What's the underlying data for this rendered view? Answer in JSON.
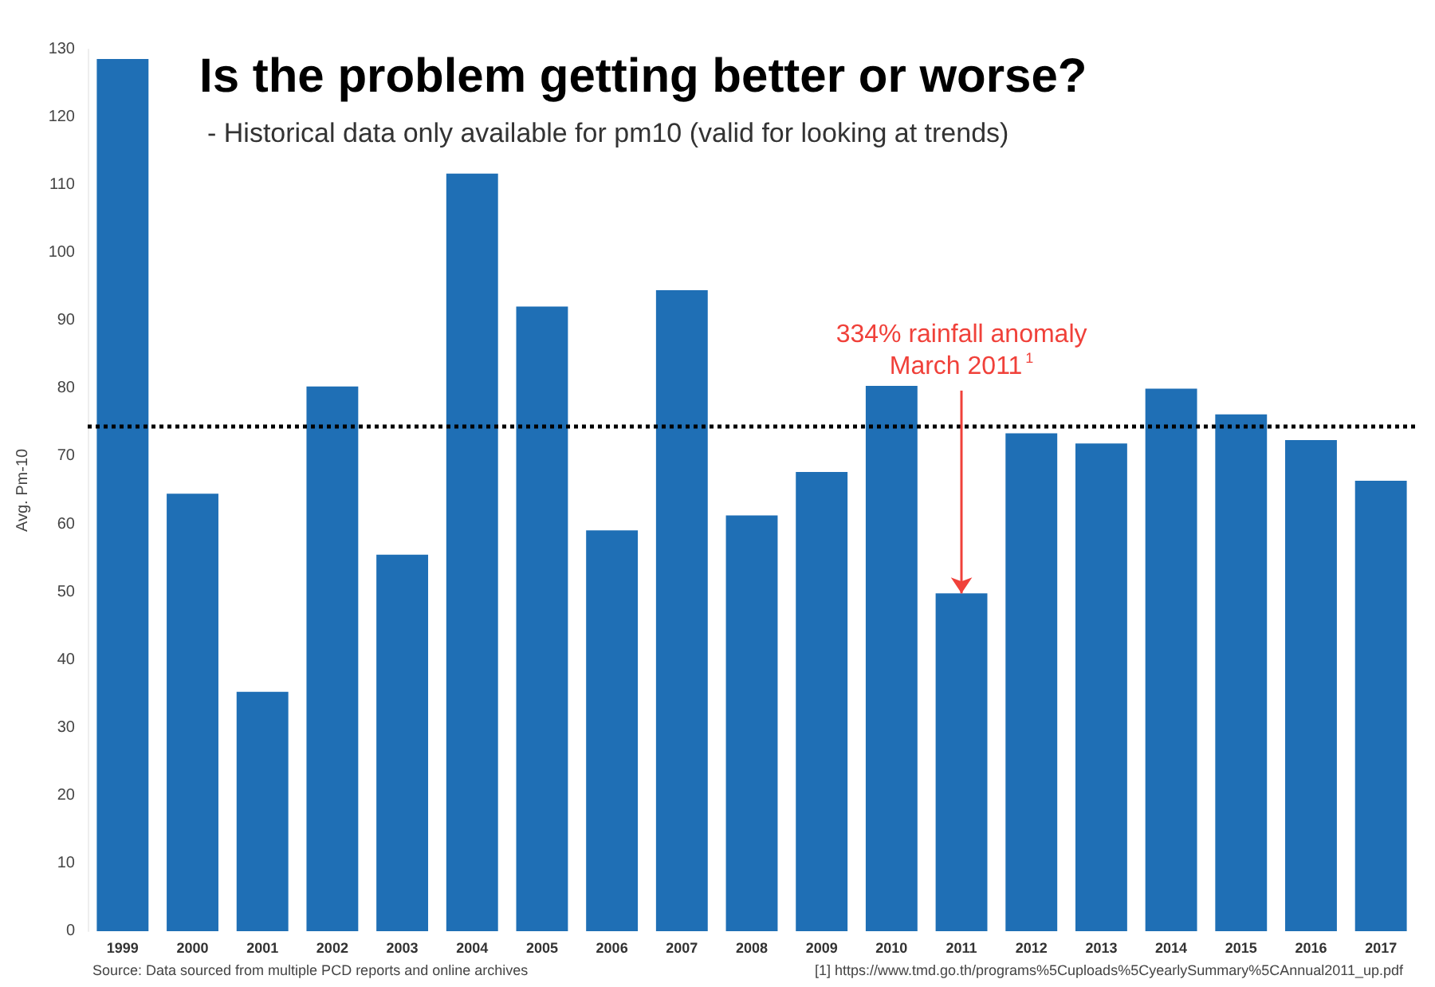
{
  "chart_data": {
    "type": "bar",
    "title": "Is the problem getting better or worse?",
    "subtitle": "- Historical data only available for pm10 (valid for looking at trends)",
    "ylabel": "Avg. Pm-10",
    "categories": [
      "1999",
      "2000",
      "2001",
      "2002",
      "2003",
      "2004",
      "2005",
      "2006",
      "2007",
      "2008",
      "2009",
      "2010",
      "2011",
      "2012",
      "2013",
      "2014",
      "2015",
      "2016",
      "2017"
    ],
    "values": [
      128.6,
      64.5,
      35.3,
      80.3,
      55.5,
      111.7,
      92.1,
      59.1,
      94.5,
      61.3,
      67.7,
      80.4,
      49.8,
      73.4,
      71.9,
      80.0,
      76.2,
      72.4,
      66.4
    ],
    "color": "#1f6fb5",
    "ylim": [
      0,
      130
    ],
    "yticks": [
      0,
      10,
      20,
      30,
      40,
      50,
      60,
      70,
      80,
      90,
      100,
      110,
      120,
      130
    ],
    "grid": false,
    "ref_lines": [
      {
        "axis": "y",
        "value": 74.5,
        "label": null,
        "color": "#000000",
        "line_style": "dotted"
      }
    ],
    "annotations": [
      {
        "text": "334% rainfall anomaly\nMarch 2011$^{1}$",
        "x": "2011",
        "y": 49.8
      },
      "Source: Data sourced from multiple PCD reports and online archives",
      "[1] https://www.tmd.go.th/programs%5Cuploads%5CyearlySummary%5CAnnual2011_up.pdf"
    ]
  }
}
